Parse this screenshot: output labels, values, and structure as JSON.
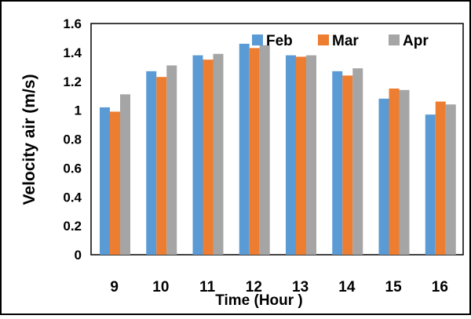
{
  "chart_data": {
    "type": "bar",
    "title": "",
    "xlabel": "Time (Hour )",
    "ylabel": "Velocity air (m/s)",
    "categories": [
      "9",
      "10",
      "11",
      "12",
      "13",
      "14",
      "15",
      "16"
    ],
    "ylim": [
      0,
      1.6
    ],
    "yticks": [
      "0",
      "0.2",
      "0.4",
      "0.6",
      "0.8",
      "1",
      "1.2",
      "1.4",
      "1.6"
    ],
    "grid": false,
    "legend_position": "top-right",
    "series": [
      {
        "name": "Feb",
        "color": "#5B9BD5",
        "values": [
          1.02,
          1.27,
          1.38,
          1.46,
          1.38,
          1.27,
          1.08,
          0.97
        ]
      },
      {
        "name": "Mar",
        "color": "#ED7D31",
        "values": [
          0.99,
          1.23,
          1.35,
          1.43,
          1.37,
          1.24,
          1.15,
          1.06
        ]
      },
      {
        "name": "Apr",
        "color": "#A5A5A5",
        "values": [
          1.11,
          1.31,
          1.39,
          1.45,
          1.38,
          1.29,
          1.14,
          1.04
        ]
      }
    ]
  }
}
